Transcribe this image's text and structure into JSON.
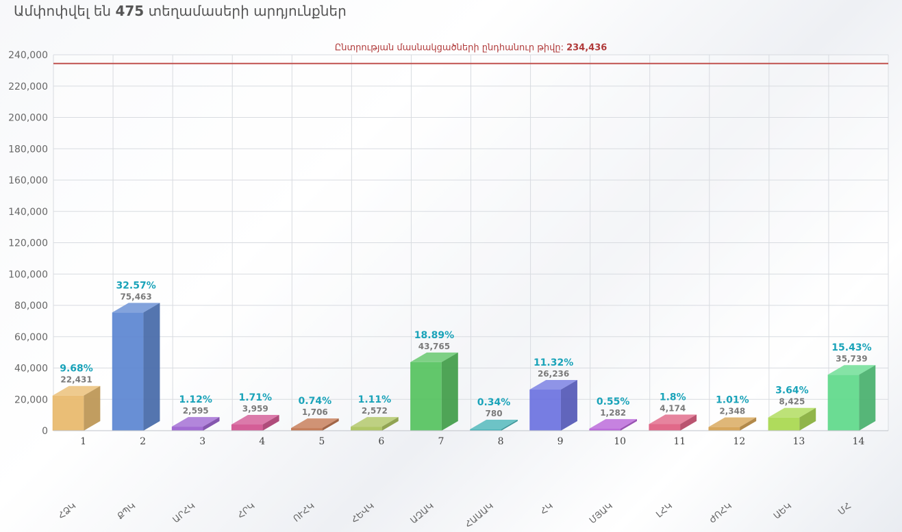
{
  "header": {
    "title_prefix": "Ամփոփվել են",
    "title_count": "475",
    "title_suffix": "տեղամասերի արդյունքներ"
  },
  "chart_data": {
    "type": "bar",
    "reference_line": {
      "label": "Ընտրության մասնակցածների ընդհանուր թիվը:",
      "value": 234436,
      "value_label": "234,436",
      "color": "#c0504d"
    },
    "ylim": [
      0,
      240000
    ],
    "yticks": [
      "0",
      "20,000",
      "40,000",
      "60,000",
      "80,000",
      "100,000",
      "120,000",
      "140,000",
      "160,000",
      "180,000",
      "200,000",
      "220,000",
      "240,000"
    ],
    "ytick_values": [
      0,
      20000,
      40000,
      60000,
      80000,
      100000,
      120000,
      140000,
      160000,
      180000,
      200000,
      220000,
      240000
    ],
    "grid": true,
    "categories": [
      "1",
      "2",
      "3",
      "4",
      "5",
      "6",
      "7",
      "8",
      "9",
      "10",
      "11",
      "12",
      "13",
      "14"
    ],
    "party_labels": [
      "ՀՁԿ",
      "ՔՊԿ",
      "ԱՐՀԿ",
      "ՀՐԿ",
      "ՈՒՀԿ",
      "ՀԵՎԿ",
      "ԱԶԱԿ",
      "ՀԱԱԱԿ",
      "ՀԿ",
      "ՄՅԱԿ",
      "ԼՀԿ",
      "ԺՈՀԿ",
      "ԱԵԿ",
      "ՄՀ"
    ],
    "values": [
      22431,
      75463,
      2595,
      3959,
      1706,
      2572,
      43765,
      780,
      26236,
      1282,
      4174,
      2348,
      8425,
      35739
    ],
    "value_labels": [
      "22,431",
      "75,463",
      "2,595",
      "3,959",
      "1,706",
      "2,572",
      "43,765",
      "780",
      "26,236",
      "1,282",
      "4,174",
      "2,348",
      "8,425",
      "35,739"
    ],
    "percent_labels": [
      "9.68%",
      "32.57%",
      "1.12%",
      "1.71%",
      "0.74%",
      "1.11%",
      "18.89%",
      "0.34%",
      "11.32%",
      "0.55%",
      "1.8%",
      "1.01%",
      "3.64%",
      "15.43%"
    ],
    "colors": [
      "#e8b96a",
      "#5b86d1",
      "#9a5fcf",
      "#d0508e",
      "#c0714a",
      "#a9c25a",
      "#55c25e",
      "#3fb0b4",
      "#6b72e0",
      "#b45ad6",
      "#de5c7f",
      "#d4a04e",
      "#a8d84e",
      "#5ed98a"
    ]
  }
}
